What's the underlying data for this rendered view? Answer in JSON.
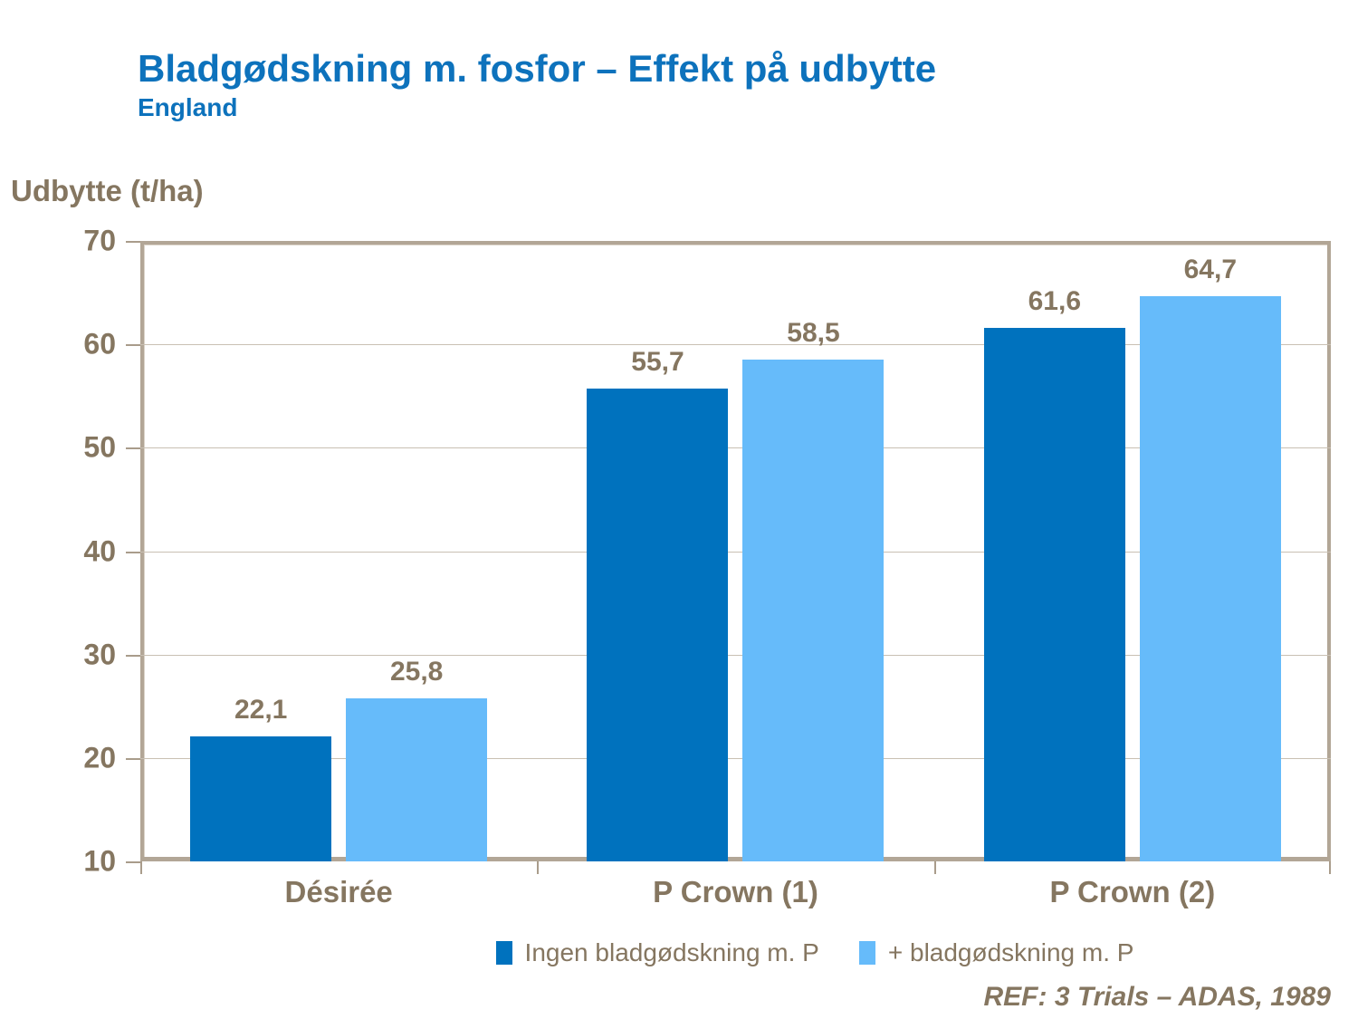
{
  "title": "Bladgødskning m. fosfor – Effekt på udbytte",
  "subtitle": "England",
  "footer": "REF: 3 Trials – ADAS, 1989",
  "colors": {
    "title_blue": "#0d72bc",
    "series1_blue": "#0072be",
    "series2_blue": "#66bbfa",
    "text_brown": "#857660",
    "axis_taupe": "#b2a696",
    "gridline": "#c9c0b3"
  },
  "chart_data": {
    "type": "bar",
    "title": "Bladgødskning m. fosfor – Effekt på udbytte",
    "subtitle": "England",
    "ylabel": "Udbytte (t/ha)",
    "xlabel": "",
    "ylim": [
      10,
      70
    ],
    "yticks": [
      70,
      60,
      50,
      40,
      30,
      20,
      10
    ],
    "grid": true,
    "legend_position": "bottom",
    "categories": [
      "Désirée",
      "P Crown (1)",
      "P Crown (2)"
    ],
    "series": [
      {
        "name": "Ingen bladgødskning m. P",
        "color": "#0072be",
        "values": [
          22.1,
          55.7,
          61.6
        ],
        "labels": [
          "22,1",
          "55,7",
          "61,6"
        ]
      },
      {
        "name": "+ bladgødskning m. P",
        "color": "#66bbfa",
        "values": [
          25.8,
          58.5,
          64.7
        ],
        "labels": [
          "25,8",
          "58,5",
          "64,7"
        ]
      }
    ],
    "annotation": "REF: 3 Trials – ADAS, 1989"
  }
}
